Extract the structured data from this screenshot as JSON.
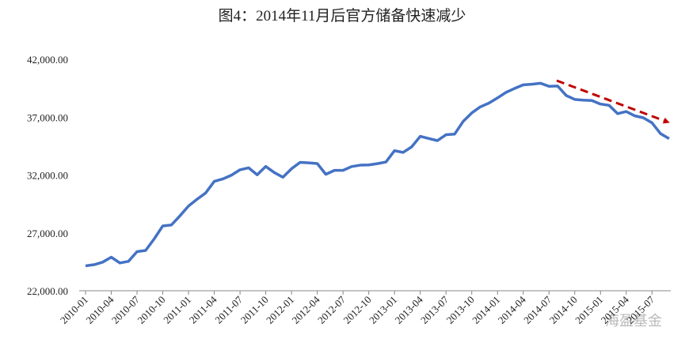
{
  "chart_data": {
    "type": "line",
    "title": "图4：2014年11月后官方储备快速减少",
    "categories": [
      "2010-01",
      null,
      null,
      "2010-04",
      null,
      null,
      "2010-07",
      null,
      null,
      "2010-10",
      null,
      null,
      "2011-01",
      null,
      null,
      "2011-04",
      null,
      null,
      "2011-07",
      null,
      null,
      "2011-10",
      null,
      null,
      "2012-01",
      null,
      null,
      "2012-04",
      null,
      null,
      "2012-07",
      null,
      null,
      "2012-10",
      null,
      null,
      "2013-01",
      null,
      null,
      "2013-04",
      null,
      null,
      "2013-07",
      null,
      null,
      "2013-10",
      null,
      null,
      "2014-01",
      null,
      null,
      "2014-04",
      null,
      null,
      "2014-07",
      null,
      null,
      "2014-10",
      null,
      null,
      "2015-01",
      null,
      null,
      "2015-04",
      null,
      null,
      "2015-07",
      null,
      null
    ],
    "values": [
      24150,
      24250,
      24470,
      24900,
      24400,
      24540,
      25380,
      25480,
      26480,
      27600,
      27680,
      28470,
      29320,
      29910,
      30450,
      31450,
      31660,
      31980,
      32450,
      32620,
      32020,
      32740,
      32210,
      31810,
      32540,
      33090,
      33050,
      32990,
      32060,
      32400,
      32400,
      32730,
      32850,
      32870,
      32980,
      33120,
      34100,
      33950,
      34430,
      35340,
      35150,
      34970,
      35480,
      35530,
      36630,
      37360,
      37890,
      38210,
      38660,
      39140,
      39480,
      39790,
      39840,
      39930,
      39660,
      39690,
      38870,
      38530,
      38470,
      38430,
      38130,
      38020,
      37300,
      37480,
      37110,
      36940,
      36510,
      35570,
      35140
    ],
    "color": "#4472c4",
    "ylim": [
      22000,
      42000
    ],
    "yticks": [
      {
        "value": 22000,
        "label": "22,000.00"
      },
      {
        "value": 27000,
        "label": "27,000.00"
      },
      {
        "value": 32000,
        "label": "32,000.00"
      },
      {
        "value": 37000,
        "label": "37,000.00"
      },
      {
        "value": 42000,
        "label": "42,000.00"
      }
    ],
    "grid": false,
    "watermark": "海盈基金"
  }
}
